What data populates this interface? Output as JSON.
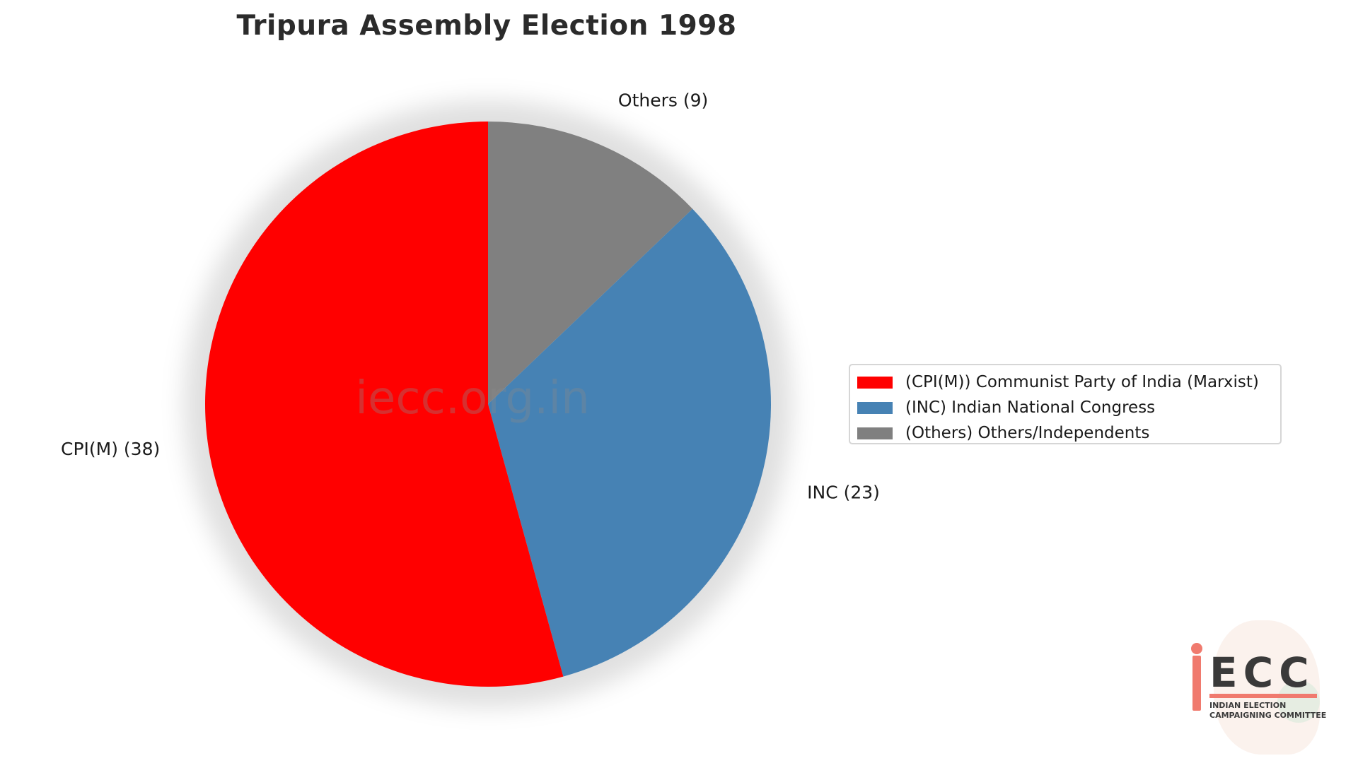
{
  "chart_data": {
    "type": "pie",
    "title": "Tripura Assembly Election 1998",
    "slices": [
      {
        "label": "CPI(M) (38)",
        "value": 38,
        "color": "#ff0000",
        "legend": "(CPI(M)) Communist Party of India (Marxist)"
      },
      {
        "label": "INC (23)",
        "value": 23,
        "color": "#4682b4",
        "legend": "(INC) Indian National Congress"
      },
      {
        "label": "Others (9)",
        "value": 9,
        "color": "#808080",
        "legend": "(Others) Others/Independents"
      }
    ],
    "legend_position": "right",
    "watermark": "iecc.org.in"
  },
  "logo": {
    "letters": "ECC",
    "line1": "INDIAN ELECTION",
    "line2": "CAMPAIGNING COMMITTEE"
  }
}
